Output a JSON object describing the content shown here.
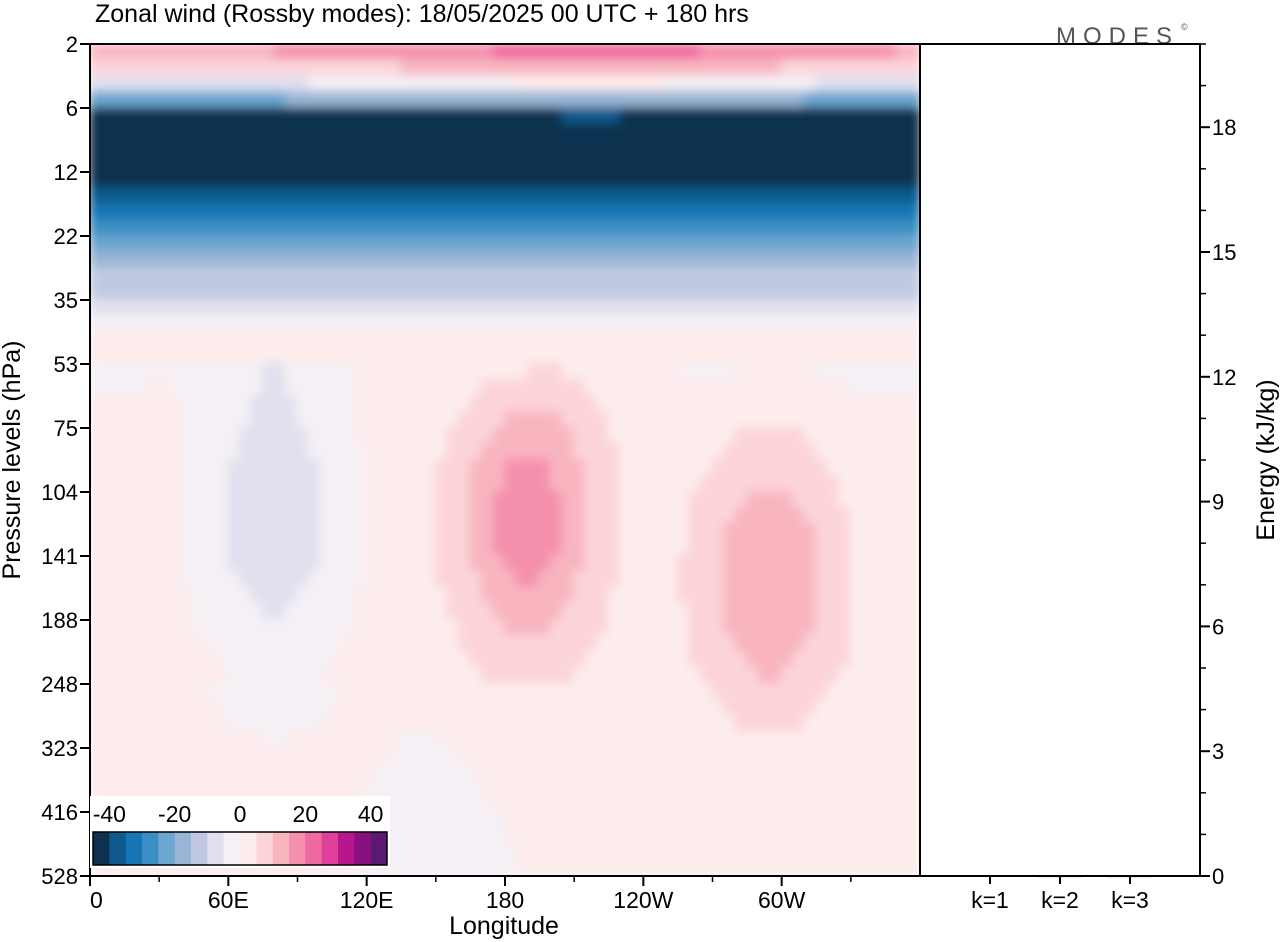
{
  "chart_data": [
    {
      "type": "heatmap",
      "title": "Zonal wind (Rossby modes):  18/05/2025  00 UTC  + 180 hrs",
      "xlabel": "Longitude",
      "ylabel": "Pressure levels (hPa)",
      "x_ticks": [
        "0",
        "60E",
        "120E",
        "180",
        "120W",
        "60W"
      ],
      "x_tick_values": [
        0,
        60,
        120,
        180,
        240,
        300
      ],
      "xlim": [
        0,
        360
      ],
      "y_ticks": [
        "2",
        "6",
        "12",
        "22",
        "35",
        "53",
        "75",
        "104",
        "141",
        "188",
        "248",
        "323",
        "416",
        "528"
      ],
      "y_tick_index": [
        0,
        1,
        2,
        3,
        4,
        5,
        6,
        7,
        8,
        9,
        10,
        11,
        12,
        13
      ],
      "yscale": "model levels (pressure decreasing upward)",
      "colorbar": {
        "tick_labels": [
          "-40",
          "-20",
          "0",
          "20",
          "40"
        ],
        "range": [
          -45,
          45
        ],
        "colors": [
          "#10304f",
          "#0f5a8c",
          "#1676b5",
          "#3a8ec4",
          "#6aa6cf",
          "#98b5d6",
          "#c1c9e2",
          "#e0e0ee",
          "#f5f0f5",
          "#fdecec",
          "#fcd4d8",
          "#f8b5c0",
          "#f590ac",
          "#ef6aa2",
          "#e0409c",
          "#b8178b",
          "#8a0f80",
          "#5b1a72"
        ]
      },
      "features": [
        {
          "lon": 10,
          "level": 1.55,
          "value": -40
        },
        {
          "lon": 80,
          "level": 1.6,
          "value": -42
        },
        {
          "lon": 180,
          "level": 1.55,
          "value": -45
        },
        {
          "lon": 270,
          "level": 1.6,
          "value": -40
        },
        {
          "lon": 330,
          "level": 1.7,
          "value": -35
        },
        {
          "lon": 220,
          "level": 0.1,
          "value": 30
        },
        {
          "lon": 80,
          "level": 7.4,
          "value": -12
        },
        {
          "lon": 190,
          "level": 7.4,
          "value": 18
        },
        {
          "lon": 295,
          "level": 8.4,
          "value": 14
        },
        {
          "lon": 150,
          "level": 13.2,
          "value": -4
        }
      ]
    },
    {
      "type": "bar",
      "categories": [
        "k=1",
        "k=2",
        "k=3"
      ],
      "values": [
        0.02,
        0.01,
        0.01
      ],
      "ylabel": "Energy (kJ/kg)",
      "ylim": [
        0,
        20
      ],
      "y_ticks": [
        "0",
        "3",
        "6",
        "9",
        "12",
        "15",
        "18"
      ]
    }
  ],
  "logo": "MODES"
}
